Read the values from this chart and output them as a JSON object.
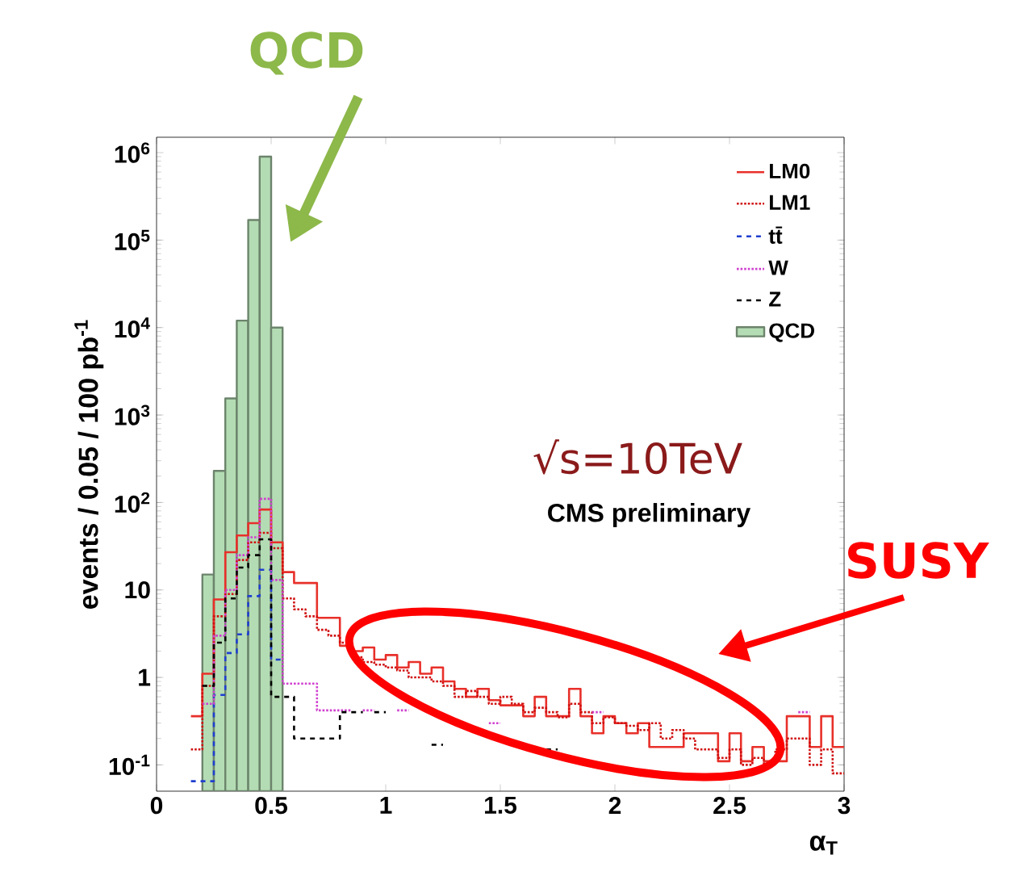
{
  "chart_data": {
    "type": "histogram",
    "xlabel": "α$_{T}$",
    "ylabel": "events / 0.05 / 100 pb$^{-1}$",
    "annotations": [
      "QCD",
      "√s=10TeV",
      "CMS preliminary",
      "SUSY"
    ],
    "bins": [
      0.2,
      0.25,
      0.3,
      0.35,
      0.4,
      0.45,
      0.5,
      0.55
    ],
    "series": [
      {
        "name": "LM0",
        "type": "step",
        "line_style": "solid",
        "color": "#e8302a",
        "x": [
          0.15,
          0.2,
          0.25,
          0.3,
          0.35,
          0.4,
          0.45,
          0.5,
          0.55,
          0.6,
          0.65,
          0.7,
          0.75,
          0.8,
          0.85,
          0.9,
          0.95,
          1,
          1.05,
          1.1,
          1.15,
          1.2,
          1.25,
          1.3,
          1.35,
          1.4,
          1.45,
          1.5,
          1.55,
          1.6,
          1.65,
          1.7,
          1.75,
          1.8,
          1.85,
          1.9,
          1.95,
          2,
          2.05,
          2.1,
          2.15,
          2.2,
          2.25,
          2.3,
          2.35,
          2.4,
          2.45,
          2.5,
          2.55,
          2.6,
          2.65,
          2.7,
          2.75,
          2.8,
          2.85,
          2.9,
          2.95,
          3
        ],
        "values": [
          0.36,
          1.1,
          7.8,
          27,
          42,
          58,
          83,
          35,
          16,
          12,
          12,
          4.8,
          4.8,
          2.3,
          2.0,
          2.2,
          1.6,
          1.8,
          1.3,
          1.5,
          1.1,
          1.3,
          0.9,
          0.74,
          0.6,
          0.74,
          0.55,
          0.48,
          0.48,
          0.36,
          0.6,
          0.36,
          0.36,
          0.74,
          0.36,
          0.23,
          0.36,
          0.3,
          0.23,
          0.3,
          0.16,
          0.16,
          0.16,
          0.23,
          0.23,
          0.23,
          0.11,
          0.23,
          0.11,
          0.16,
          0.11,
          0.11,
          0.36,
          0.36,
          0.16,
          0.36,
          0.16,
          0.16
        ]
      },
      {
        "name": "LM1",
        "type": "step",
        "line_style": "dotted",
        "color": "#d01010",
        "x": [
          0.15,
          0.2,
          0.25,
          0.3,
          0.35,
          0.4,
          0.45,
          0.5,
          0.55,
          0.6,
          0.65,
          0.7,
          0.75,
          0.8,
          0.85,
          0.9,
          0.95,
          1,
          1.05,
          1.1,
          1.15,
          1.2,
          1.25,
          1.3,
          1.35,
          1.4,
          1.45,
          1.5,
          1.55,
          1.6,
          1.65,
          1.7,
          1.75,
          1.8,
          1.85,
          1.9,
          1.95,
          2,
          2.05,
          2.1,
          2.15,
          2.2,
          2.25,
          2.3,
          2.35,
          2.4,
          2.45,
          2.5,
          2.55,
          2.6,
          2.65,
          2.7,
          2.75,
          2.8,
          2.85,
          2.9,
          2.95,
          3
        ],
        "values": [
          0.15,
          0.8,
          5,
          9,
          22,
          35,
          45,
          30,
          8,
          6,
          5,
          3.5,
          3,
          2.5,
          1.7,
          1.5,
          1.4,
          1.3,
          1.2,
          1.0,
          1.0,
          0.9,
          0.8,
          0.6,
          0.7,
          0.6,
          0.5,
          0.6,
          0.5,
          0.4,
          0.45,
          0.4,
          0.35,
          0.5,
          0.4,
          0.3,
          0.35,
          0.3,
          0.28,
          0.25,
          0.3,
          0.2,
          0.25,
          0.2,
          0.15,
          0.15,
          0.12,
          0.15,
          0.1,
          0.12,
          0.1,
          0.15,
          0.2,
          0.2,
          0.1,
          0.15,
          0.08,
          0.08
        ]
      },
      {
        "name": "tt̄",
        "type": "step",
        "line_style": "dashed",
        "color": "#1f3fd0",
        "x": [
          0.15,
          0.2,
          0.25,
          0.3,
          0.35,
          0.4,
          0.45,
          0.5,
          0.55
        ],
        "values": [
          0.065,
          0.065,
          0.63,
          1.9,
          3.1,
          8.5,
          17,
          1.6,
          1.6
        ]
      },
      {
        "name": "W",
        "type": "step",
        "line_style": "dotted",
        "color": "#d040d0",
        "x": [
          0.2,
          0.25,
          0.3,
          0.35,
          0.4,
          0.45,
          0.5,
          0.55,
          0.6,
          0.65,
          0.7,
          0.75,
          0.8,
          0.85,
          0.9,
          0.95,
          1.05,
          1.1,
          1.45,
          1.5,
          1.9,
          1.95,
          2.8,
          2.85
        ],
        "values": [
          0.5,
          3,
          10,
          25,
          40,
          110,
          13,
          0.85,
          0.85,
          0.85,
          0.42,
          0.42,
          0.42,
          null,
          0.42,
          null,
          0.42,
          null,
          0.3,
          null,
          0.4,
          null,
          0.4,
          0.4
        ]
      },
      {
        "name": "Z",
        "type": "step",
        "line_style": "dashed",
        "color": "#000000",
        "x": [
          0.2,
          0.25,
          0.3,
          0.35,
          0.4,
          0.45,
          0.5,
          0.55,
          0.6,
          0.65,
          0.7,
          0.75,
          0.8,
          0.85,
          0.9,
          0.95,
          1.0,
          1.2,
          1.25,
          1.7,
          1.75
        ],
        "values": [
          0.8,
          2.5,
          8,
          18,
          25,
          38,
          0.6,
          0.6,
          0.2,
          0.2,
          0.2,
          0.2,
          0.4,
          0.4,
          null,
          0.4,
          null,
          0.17,
          null,
          0.15,
          0.15
        ]
      },
      {
        "name": "QCD",
        "line_style": "solid",
        "color": "#b4dcb4",
        "values": [
          15,
          230,
          1550,
          12000,
          170000,
          900000,
          10000
        ]
      }
    ],
    "xlim": [
      0,
      3
    ],
    "ylim": [
      0.05,
      1500000
    ],
    "log": "y",
    "legend": "top right",
    "xticks": [
      0,
      0.5,
      1,
      1.5,
      2,
      2.5,
      3
    ],
    "yticks": [
      {
        "value": 0.1,
        "label": "10$^{-1}$"
      },
      1,
      10,
      {
        "value": 100,
        "label": "10$^{2}$"
      },
      {
        "value": 1000,
        "label": "10$^{3}$"
      },
      {
        "value": 10000,
        "label": "10$^{4}$"
      },
      {
        "value": 100000,
        "label": "10$^{5}$"
      },
      {
        "value": 1000000,
        "label": "10$^{6}$"
      }
    ]
  }
}
